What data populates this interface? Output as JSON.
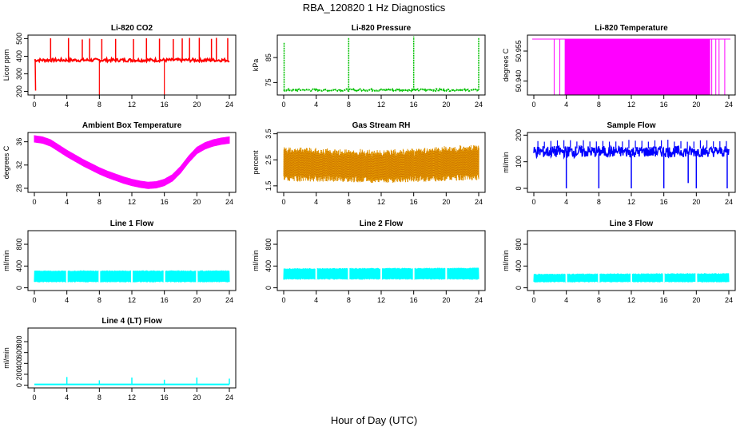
{
  "page": {
    "title": "RBA_120820  1 Hz Diagnostics",
    "xlabel": "Hour of Day (UTC)"
  },
  "chart_data": [
    {
      "id": "p1",
      "type": "line",
      "title": "Li-820 CO2",
      "ylabel": "Licor ppm",
      "color": "#ff0000",
      "xlim": [
        0,
        24
      ],
      "ylim": [
        180,
        520
      ],
      "xticks": [
        0,
        4,
        8,
        12,
        16,
        20,
        24
      ],
      "yticks": [
        200,
        300,
        400,
        500
      ],
      "series": [
        {
          "x": [
            0,
            0.25,
            1,
            2,
            4,
            6,
            8,
            10,
            12,
            14,
            16,
            18,
            20,
            22,
            24
          ],
          "y": [
            380,
            230,
            378,
            383,
            379,
            384,
            380,
            382,
            379,
            381,
            379,
            383,
            380,
            382,
            379
          ]
        }
      ],
      "spikes_up": [
        2,
        4.2,
        5.9,
        6.8,
        8.3,
        10,
        12.2,
        13.8,
        15.4,
        17.1,
        18.2,
        19.1,
        20.3,
        21.8,
        22.4,
        23.8
      ],
      "spikes_down": [
        8,
        16
      ],
      "upper": [
        370,
        395
      ],
      "lower_spike": 205
    },
    {
      "id": "p2",
      "type": "line",
      "title": "Li-820 Pressure",
      "ylabel": "kPa",
      "color": "#00c000",
      "xlim": [
        0,
        24
      ],
      "ylim": [
        70,
        94
      ],
      "xticks": [
        0,
        4,
        8,
        12,
        16,
        20,
        24
      ],
      "yticks": [
        75,
        85
      ],
      "series": [
        {
          "x": [
            0,
            4,
            8,
            12,
            16,
            20,
            24
          ],
          "y": [
            72,
            72,
            72,
            72,
            72,
            72,
            72
          ]
        }
      ],
      "spikes_up": [
        0.05,
        8,
        16,
        24
      ],
      "spike_top": [
        91,
        93,
        93.5,
        93
      ]
    },
    {
      "id": "p3",
      "type": "line",
      "title": "Li-820 Temperature",
      "ylabel": "degrees C",
      "color": "#ff00ff",
      "xlim": [
        0,
        24
      ],
      "ylim": [
        50.933,
        50.963
      ],
      "xticks": [
        0,
        4,
        8,
        12,
        16,
        20,
        24
      ],
      "yticks": [
        50.94,
        50.955
      ],
      "ytick_labels": [
        "50.940",
        "50.955"
      ],
      "band": [
        3.8,
        21.7
      ],
      "lines": [
        2.5,
        3.2,
        21.9,
        22.4,
        22.8,
        23.5
      ],
      "top_value": 50.961
    },
    {
      "id": "p4",
      "type": "line",
      "title": "Ambient Box Temperature",
      "ylabel": "degrees C",
      "color": "#ff00ff",
      "xlim": [
        0,
        24
      ],
      "ylim": [
        27.3,
        37.6
      ],
      "xticks": [
        0,
        4,
        8,
        12,
        16,
        20,
        24
      ],
      "yticks": [
        28,
        32,
        36
      ],
      "series": [
        {
          "x": [
            0,
            1,
            2,
            3,
            4,
            5,
            6,
            7,
            8,
            9,
            10,
            11,
            12,
            13,
            14,
            15,
            16,
            17,
            18,
            19,
            20,
            21,
            22,
            23,
            24
          ],
          "y": [
            36.5,
            36.3,
            35.8,
            34.9,
            34,
            33.2,
            32.4,
            31.7,
            31,
            30.4,
            29.9,
            29.4,
            29,
            28.7,
            28.5,
            28.6,
            29,
            29.8,
            31.2,
            33,
            34.5,
            35.3,
            35.8,
            36.1,
            36.3
          ]
        }
      ]
    },
    {
      "id": "p5",
      "type": "area",
      "title": "Gas Stream RH",
      "ylabel": "percent",
      "color": "#e8a000",
      "xlim": [
        0,
        24
      ],
      "ylim": [
        1.25,
        3.55
      ],
      "xticks": [
        0,
        4,
        8,
        12,
        16,
        20,
        24
      ],
      "yticks": [
        1.5,
        2.5,
        3.5
      ],
      "series": [
        {
          "x": [
            0,
            6,
            12,
            18,
            24
          ],
          "lower": [
            1.6,
            1.6,
            1.55,
            1.6,
            1.65
          ],
          "upper": [
            2.9,
            2.8,
            2.75,
            2.85,
            3.0
          ]
        }
      ]
    },
    {
      "id": "p6",
      "type": "line",
      "title": "Sample Flow",
      "ylabel": "ml/min",
      "color": "#0000ff",
      "xlim": [
        0,
        24
      ],
      "ylim": [
        -15,
        210
      ],
      "xticks": [
        0,
        4,
        8,
        12,
        16,
        20,
        24
      ],
      "yticks": [
        0,
        100,
        200
      ],
      "series": [
        {
          "x": [
            0,
            24
          ],
          "lower": [
            115,
            118
          ],
          "upper": [
            160,
            158
          ]
        }
      ],
      "dips": [
        [
          4,
          0
        ],
        [
          8,
          0
        ],
        [
          12,
          0
        ],
        [
          16,
          0
        ],
        [
          19,
          20
        ],
        [
          20,
          0
        ],
        [
          23.8,
          0
        ]
      ]
    },
    {
      "id": "p7",
      "type": "area",
      "title": "Line 1 Flow",
      "ylabel": "ml/min",
      "color": "#00ffff",
      "xlim": [
        0,
        24
      ],
      "ylim": [
        -50,
        1050
      ],
      "xticks": [
        0,
        4,
        8,
        12,
        16,
        20,
        24
      ],
      "yticks": [
        0,
        400,
        800
      ],
      "series": [
        {
          "x": [
            0,
            24
          ],
          "lower": [
            100,
            100
          ],
          "upper": [
            320,
            320
          ]
        }
      ],
      "gaps": [
        4,
        8,
        12,
        16,
        20
      ]
    },
    {
      "id": "p8",
      "type": "area",
      "title": "Line 2 Flow",
      "ylabel": "ml/min",
      "color": "#00ffff",
      "xlim": [
        0,
        24
      ],
      "ylim": [
        -50,
        1050
      ],
      "xticks": [
        0,
        4,
        8,
        12,
        16,
        20,
        24
      ],
      "yticks": [
        0,
        400,
        800
      ],
      "series": [
        {
          "x": [
            0,
            24
          ],
          "lower": [
            150,
            150
          ],
          "upper": [
            360,
            370
          ]
        }
      ],
      "gaps": [
        4,
        8,
        12,
        16,
        20
      ]
    },
    {
      "id": "p9",
      "type": "area",
      "title": "Line 3 Flow",
      "ylabel": "ml/min",
      "color": "#00ffff",
      "xlim": [
        0,
        24
      ],
      "ylim": [
        -50,
        1050
      ],
      "xticks": [
        0,
        4,
        8,
        12,
        16,
        20,
        24
      ],
      "yticks": [
        0,
        400,
        800
      ],
      "series": [
        {
          "x": [
            0,
            24
          ],
          "lower": [
            100,
            100
          ],
          "upper": [
            260,
            270
          ]
        }
      ],
      "gaps": [
        4,
        8,
        12,
        16,
        20
      ]
    },
    {
      "id": "p10",
      "type": "line",
      "title": "Line 4 (LT) Flow",
      "ylabel": "ml/min",
      "color": "#00ffff",
      "xlim": [
        0,
        24
      ],
      "ylim": [
        -50,
        1050
      ],
      "xticks": [
        0,
        4,
        8,
        12,
        16,
        20,
        24
      ],
      "yticks": [
        0,
        200,
        400,
        600,
        800
      ],
      "series": [
        {
          "x": [
            0,
            24
          ],
          "y": [
            15,
            15
          ]
        }
      ],
      "spikes": [
        [
          4,
          150
        ],
        [
          8,
          90
        ],
        [
          12,
          140
        ],
        [
          16,
          100
        ],
        [
          20,
          140
        ],
        [
          24,
          120
        ]
      ]
    }
  ]
}
